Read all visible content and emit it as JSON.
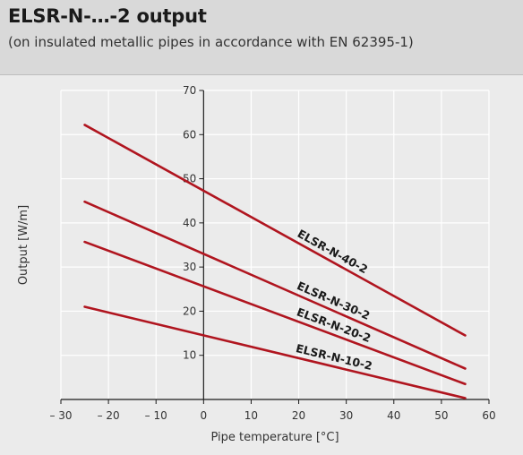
{
  "header": {
    "title": "ELSR-N-…-2 output",
    "subtitle": "(on insulated metallic pipes in accordance with EN 62395-1)"
  },
  "colors": {
    "header_bg": "#d9d9d9",
    "plot_bg": "#ebebeb",
    "series_line": "#b0151f",
    "grid": "#ffffff"
  },
  "chart_data": {
    "type": "line",
    "title": "ELSR-N-…-2 output",
    "subtitle": "(on insulated metallic pipes in accordance with EN 62395-1)",
    "xlabel": "Pipe temperature [°C]",
    "ylabel": "Output [W/m]",
    "xlim": [
      -30,
      60
    ],
    "ylim": [
      0,
      70
    ],
    "x_ticks": [
      -30,
      -20,
      -10,
      0,
      10,
      20,
      30,
      40,
      50,
      60
    ],
    "x_tick_labels": [
      "– 30",
      "– 20",
      "– 10",
      "0",
      "10",
      "20",
      "30",
      "40",
      "50",
      "60"
    ],
    "y_ticks": [
      10,
      20,
      30,
      40,
      50,
      60,
      70
    ],
    "y_tick_labels": [
      "10",
      "20",
      "30",
      "40",
      "50",
      "60",
      "70"
    ],
    "grid": true,
    "legend": "labels placed directly on the lines",
    "series": [
      {
        "name": "ELSR-N-40-2",
        "x": [
          -25,
          55
        ],
        "y": [
          62.2,
          14.5
        ]
      },
      {
        "name": "ELSR-N-30-2",
        "x": [
          -25,
          55
        ],
        "y": [
          44.8,
          7.0
        ]
      },
      {
        "name": "ELSR-N-20-2",
        "x": [
          -25,
          55
        ],
        "y": [
          35.7,
          3.5
        ]
      },
      {
        "name": "ELSR-N-10-2",
        "x": [
          -25,
          55
        ],
        "y": [
          21.0,
          0.3
        ]
      }
    ]
  }
}
